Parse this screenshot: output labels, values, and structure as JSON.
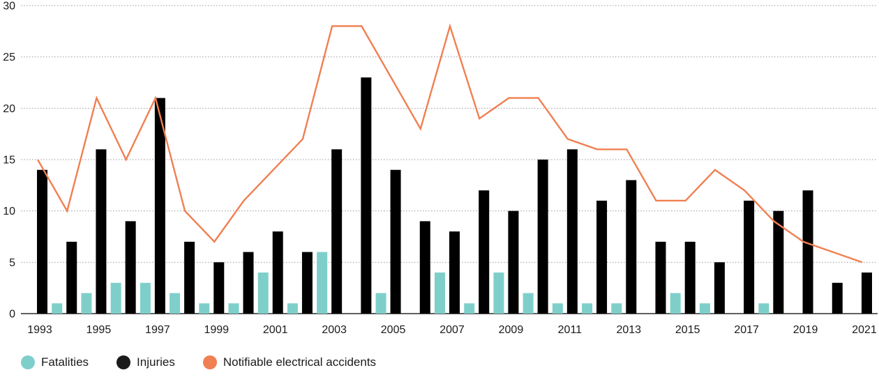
{
  "chart_data": {
    "type": "bar",
    "years": [
      1993,
      1994,
      1995,
      1996,
      1997,
      1998,
      1999,
      2000,
      2001,
      2002,
      2003,
      2004,
      2005,
      2006,
      2007,
      2008,
      2009,
      2010,
      2011,
      2012,
      2013,
      2014,
      2015,
      2016,
      2017,
      2018,
      2019,
      2020,
      2021
    ],
    "x_tick_labels": [
      "1993",
      "1995",
      "1997",
      "1999",
      "2001",
      "2003",
      "2005",
      "2007",
      "2009",
      "2011",
      "2013",
      "2015",
      "2017",
      "2019",
      "2021"
    ],
    "y_tick_labels": [
      "0",
      "5",
      "10",
      "15",
      "20",
      "25",
      "30"
    ],
    "ylim": [
      0,
      30
    ],
    "grid": true,
    "legend_position": "bottom-left",
    "series": [
      {
        "name": "Fatalities",
        "type": "bar",
        "color": "#7ecfca",
        "values": [
          0,
          1,
          2,
          3,
          3,
          2,
          1,
          1,
          4,
          1,
          6,
          0,
          2,
          0,
          4,
          1,
          4,
          2,
          1,
          1,
          1,
          0,
          2,
          1,
          0,
          1,
          0,
          0,
          0
        ]
      },
      {
        "name": "Injuries",
        "type": "bar",
        "color": "#000000",
        "values": [
          14,
          7,
          16,
          9,
          21,
          7,
          5,
          6,
          8,
          6,
          16,
          23,
          14,
          9,
          8,
          12,
          10,
          15,
          16,
          11,
          13,
          7,
          7,
          5,
          11,
          10,
          12,
          3,
          4
        ]
      },
      {
        "name": "Notifiable electrical accidents",
        "type": "line",
        "color": "#f07f51",
        "values": [
          15,
          10,
          21,
          15,
          21,
          10,
          7,
          11,
          14,
          17,
          28,
          28,
          23,
          18,
          28,
          19,
          21,
          21,
          17,
          16,
          16,
          11,
          11,
          14,
          12,
          9,
          7,
          6,
          5
        ]
      }
    ]
  }
}
